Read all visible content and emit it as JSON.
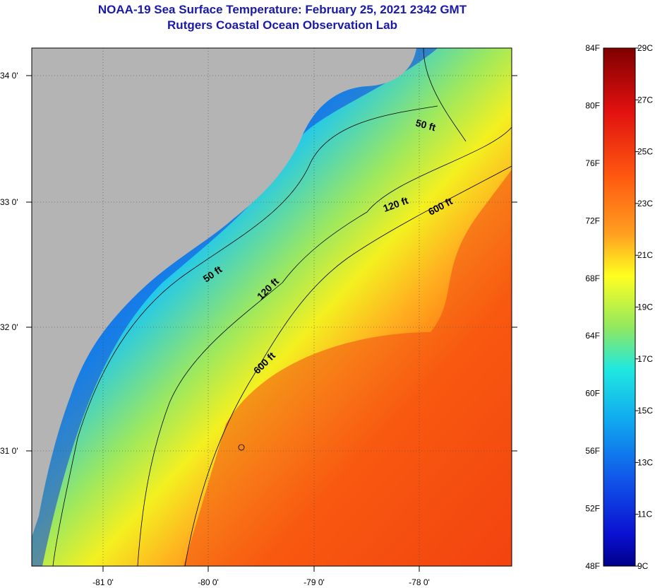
{
  "header": {
    "title": "NOAA-19 Sea Surface Temperature:  February 25, 2021 2342 GMT",
    "subtitle": "Rutgers Coastal Ocean Observation Lab"
  },
  "map": {
    "lat_labels": [
      "34 0'",
      "33 0'",
      "32 0'",
      "31 0'"
    ],
    "lon_labels": [
      "-81 0'",
      "-80 0'",
      "-79 0'",
      "-78 0'"
    ],
    "contours": [
      "50 ft",
      "120 ft",
      "600 ft",
      "50 ft",
      "120 ft",
      "600 ft"
    ]
  },
  "colorbar": {
    "fahrenheit": [
      "84F",
      "80F",
      "76F",
      "72F",
      "68F",
      "64F",
      "60F",
      "56F",
      "52F",
      "48F"
    ],
    "celsius": [
      "29C",
      "27C",
      "25C",
      "23C",
      "21C",
      "19C",
      "17C",
      "15C",
      "13C",
      "11C",
      "9C"
    ]
  },
  "colors": {
    "land": "#b4b4b4",
    "deep_blue": "#0a2fd9",
    "cyan": "#1ec8f0",
    "yellow": "#f4f020",
    "orange": "#ff6a10",
    "red": "#f23a10"
  }
}
